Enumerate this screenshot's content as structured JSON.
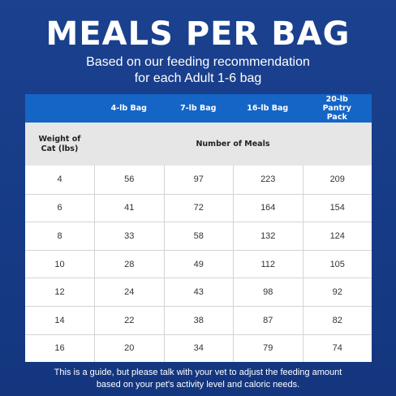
{
  "title": "MEALS PER BAG",
  "subtitle": {
    "line1": "Based on our feeding recommendation",
    "line2": "for each Adult 1-6 bag"
  },
  "table": {
    "columns": [
      "4-lb Bag",
      "7-lb Bag",
      "16-lb Bag",
      "20-lb Pantry Pack"
    ],
    "weight_header": "Weight of Cat (lbs)",
    "meals_header": "Number of Meals",
    "rows": [
      {
        "weight": "4",
        "values": [
          "56",
          "97",
          "223",
          "209"
        ]
      },
      {
        "weight": "6",
        "values": [
          "41",
          "72",
          "164",
          "154"
        ]
      },
      {
        "weight": "8",
        "values": [
          "33",
          "58",
          "132",
          "124"
        ]
      },
      {
        "weight": "10",
        "values": [
          "28",
          "49",
          "112",
          "105"
        ]
      },
      {
        "weight": "12",
        "values": [
          "24",
          "43",
          "98",
          "92"
        ]
      },
      {
        "weight": "14",
        "values": [
          "22",
          "38",
          "87",
          "82"
        ]
      },
      {
        "weight": "16",
        "values": [
          "20",
          "34",
          "79",
          "74"
        ]
      }
    ]
  },
  "footnote": {
    "line1": "This is a guide, but please talk with your vet to adjust the feeding amount",
    "line2": "based on your pet's activity level and caloric needs."
  },
  "colors": {
    "background": "#1a3f8c",
    "header_blue": "#1565c6",
    "subheader_gray": "#e6e6e6"
  }
}
